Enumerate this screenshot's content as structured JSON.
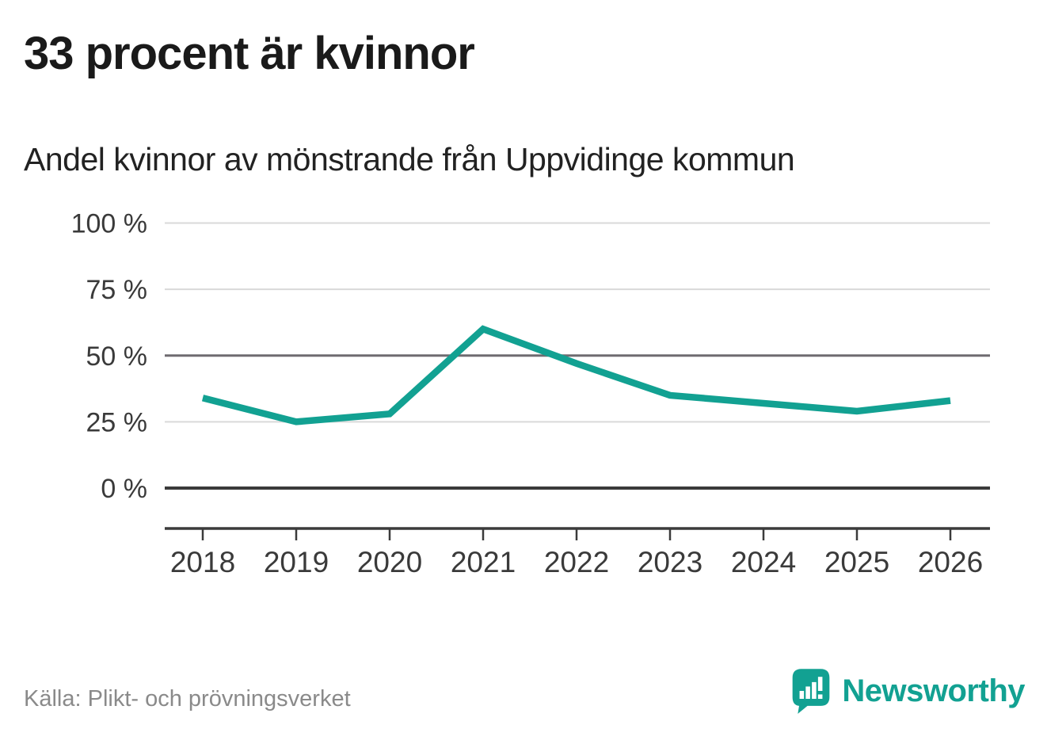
{
  "title": "33 procent är kvinnor",
  "subtitle": "Andel kvinnor av mönstrande från Uppvidinge kommun",
  "source": "Källa: Plikt- och prövningsverket",
  "brand": {
    "name": "Newsworthy",
    "icon": "speech-bubble-bar-chart-exclamation-icon"
  },
  "colors": {
    "accent": "#12a192",
    "line": "#12a192",
    "grid_light": "#d9d9d9",
    "grid_mid": "#6f6b70",
    "grid_zero": "#3b3b3b",
    "axis": "#3b3b3b",
    "title_text": "#1a1a1a",
    "tick_text": "#3a3a3a",
    "source_text": "#8a8a8a"
  },
  "chart_data": {
    "type": "line",
    "title": "33 procent är kvinnor",
    "subtitle": "Andel kvinnor av mönstrande från Uppvidinge kommun",
    "x": [
      "2018",
      "2019",
      "2020",
      "2021",
      "2022",
      "2023",
      "2024",
      "2025",
      "2026"
    ],
    "series": [
      {
        "name": "Andel kvinnor av mönstrande (%)",
        "color": "#12a192",
        "values": [
          34,
          25,
          28,
          60,
          47,
          35,
          32,
          29,
          33
        ]
      }
    ],
    "xlabel": "",
    "ylabel": "",
    "ylim": [
      0,
      100
    ],
    "yticks": [
      {
        "value": 100,
        "label": "100 %"
      },
      {
        "value": 75,
        "label": "75 %"
      },
      {
        "value": 50,
        "label": "50 %"
      },
      {
        "value": 25,
        "label": "25 %"
      },
      {
        "value": 0,
        "label": "0 %"
      }
    ],
    "grid": "horizontal",
    "legend": "none",
    "source": "Källa: Plikt- och prövningsverket"
  }
}
